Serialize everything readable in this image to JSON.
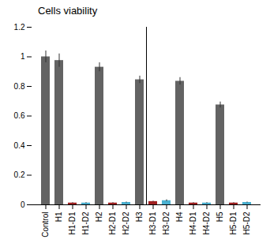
{
  "chart_data": {
    "type": "bar",
    "title": "Cells viability",
    "categories": [
      "Control",
      "H1",
      "H1-D1",
      "H1-D2",
      "H2",
      "H2-D1",
      "H2-D2",
      "H3",
      "H3-D1",
      "H3-D2",
      "H4",
      "H4-D1",
      "H4-D2",
      "H5",
      "H5-D1",
      "H5-D2"
    ],
    "values": [
      1.0,
      0.975,
      0.012,
      0.012,
      0.93,
      0.012,
      0.016,
      0.845,
      0.022,
      0.028,
      0.835,
      0.012,
      0.012,
      0.675,
      0.012,
      0.016
    ],
    "errors": [
      0.04,
      0.045,
      0.003,
      0.003,
      0.03,
      0.003,
      0.003,
      0.025,
      0.003,
      0.006,
      0.025,
      0.003,
      0.003,
      0.02,
      0.003,
      0.003
    ],
    "colors": [
      "#636363",
      "#636363",
      "#a02020",
      "#4ab0d0",
      "#636363",
      "#a02020",
      "#4ab0d0",
      "#636363",
      "#a02020",
      "#4ab0d0",
      "#636363",
      "#a02020",
      "#4ab0d0",
      "#636363",
      "#a02020",
      "#4ab0d0"
    ],
    "ylim": [
      0,
      1.2
    ],
    "yticks": [
      0,
      0.2,
      0.4,
      0.6,
      0.8,
      1,
      1.2
    ]
  }
}
